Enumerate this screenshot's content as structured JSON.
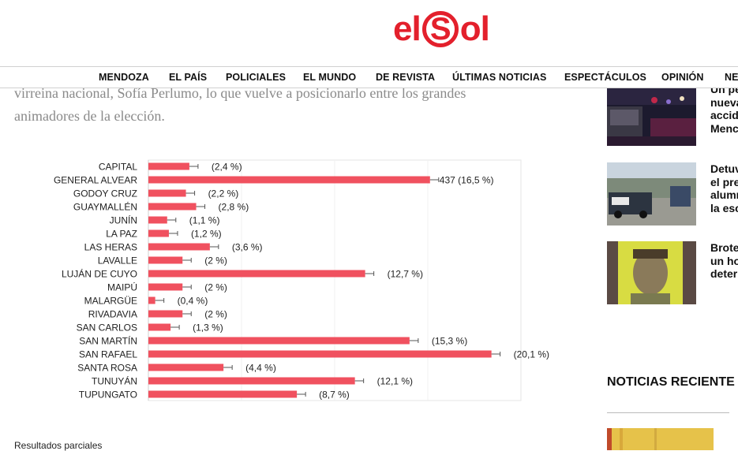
{
  "site": {
    "logo_left": "el",
    "logo_mid": "S",
    "logo_right": "ol",
    "brand_color": "#e3202c"
  },
  "nav": {
    "items": [
      "MENDOZA",
      "EL PAÍS",
      "POLICIALES",
      "EL MUNDO",
      "DE REVISTA",
      "ÚLTIMAS NOTICIAS",
      "ESPECTÁCULOS",
      "OPINIÓN",
      "NE"
    ]
  },
  "article": {
    "line1": "virreina nacional, Sofía Perlumo, lo que vuelve a posicionarlo entre los grandes",
    "line2": "animadores de la elección.",
    "caption": "Resultados parciales"
  },
  "chart_data": {
    "type": "bar",
    "orientation": "horizontal",
    "bar_color": "#f0515f",
    "categories": [
      "CAPITAL",
      "GENERAL ALVEAR",
      "GODOY CRUZ",
      "GUAYMALLÉN",
      "JUNÍN",
      "LA PAZ",
      "LAS HERAS",
      "LAVALLE",
      "LUJÁN DE CUYO",
      "MAIPÚ",
      "MALARGÜE",
      "RIVADAVIA",
      "SAN CARLOS",
      "SAN MARTÍN",
      "SAN RAFAEL",
      "SANTA ROSA",
      "TUNUYÁN",
      "TUPUNGATO"
    ],
    "values": [
      2.4,
      16.5,
      2.2,
      2.8,
      1.1,
      1.2,
      3.6,
      2,
      12.7,
      2,
      0.4,
      2,
      1.3,
      15.3,
      20.1,
      4.4,
      12.1,
      8.7
    ],
    "labels": [
      "(2,4 %)",
      "437 (16,5 %)",
      "(2,2 %)",
      "(2,8 %)",
      "(1,1 %)",
      "(1,2 %)",
      "(3,6 %)",
      "(2 %)",
      "(12,7 %)",
      "(2 %)",
      "(0,4 %)",
      "(2 %)",
      "(1,3 %)",
      "(15,3 %)",
      "(20,1 %)",
      "(4,4 %)",
      "(12,1 %)",
      "(8,7 %)"
    ],
    "xlim": [
      0,
      21.5
    ],
    "grid": true
  },
  "sidebar": {
    "items": [
      {
        "lines": [
          "Un pe",
          "nueva",
          "accid",
          "Menc"
        ]
      },
      {
        "lines": [
          "Detuv",
          "el pre",
          "alumr",
          "la esc"
        ]
      },
      {
        "lines": [
          "Brote",
          "un ho",
          "deter"
        ]
      }
    ],
    "recent_title": "NOTICIAS RECIENTE"
  }
}
